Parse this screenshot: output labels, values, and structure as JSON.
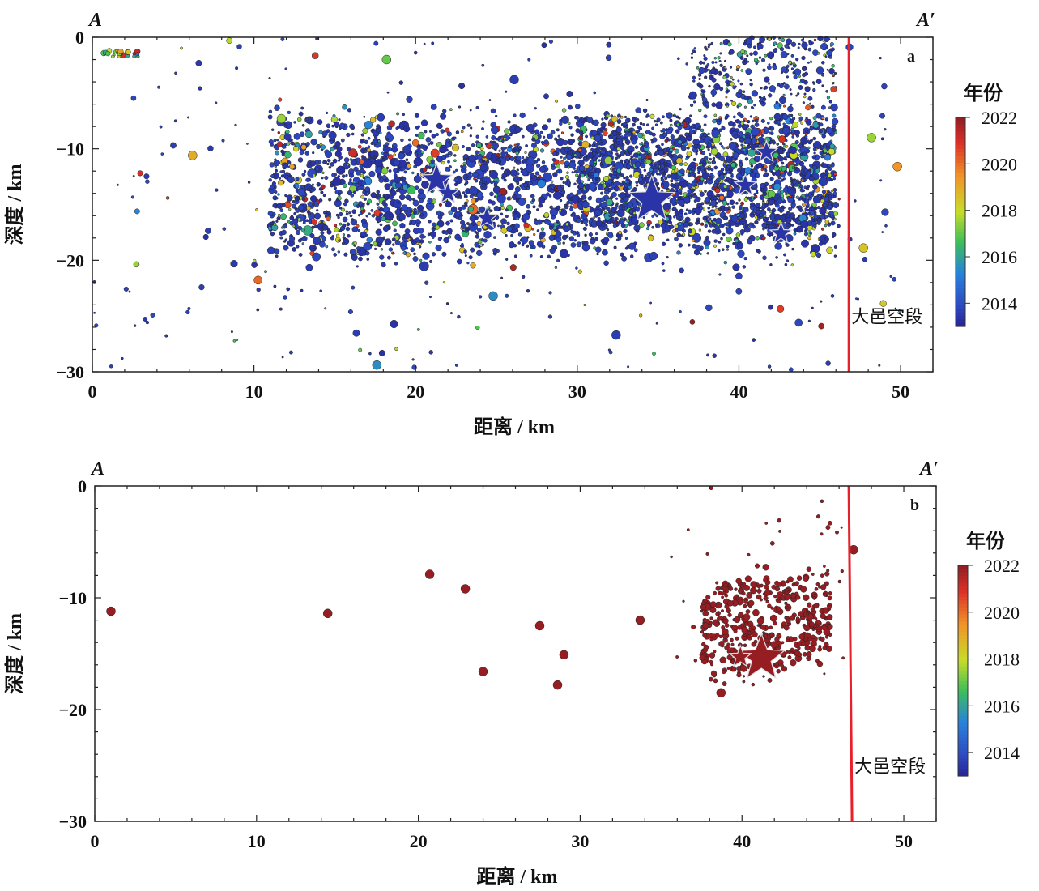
{
  "chart_data": [
    {
      "type": "scatter",
      "panel_label": "a",
      "profile_start_label": "A",
      "profile_end_label": "A′",
      "xlabel": "距离 / km",
      "ylabel": "深度 / km",
      "xlim": [
        0,
        52
      ],
      "ylim": [
        -30,
        0
      ],
      "x_ticks": [
        "0",
        "10",
        "20",
        "30",
        "40",
        "50"
      ],
      "y_ticks": [
        "0",
        "−10",
        "−20",
        "−30"
      ],
      "fault": {
        "name": "大邑空段",
        "x_top": 46.8,
        "x_bottom": 46.8,
        "color": "#e8202a"
      },
      "colorbar": {
        "title": "年份",
        "min": 2013,
        "max": 2022,
        "ticks": [
          "2022",
          "2020",
          "2018",
          "2016",
          "2014"
        ]
      },
      "cluster_summary": [
        {
          "x_range": [
            11,
            46
          ],
          "depth_range": [
            -20,
            -8
          ],
          "dominant_year": 2013.5,
          "note": "dense"
        },
        {
          "x_range": [
            37,
            46
          ],
          "depth_range": [
            -6,
            0
          ],
          "dominant_year": 2013.5,
          "note": "shallow cluster"
        }
      ],
      "mainshocks_stars": [
        {
          "x": 21.3,
          "depth": -12.8,
          "size": "medium",
          "year": 2013.3
        },
        {
          "x": 22.0,
          "depth": -14.0,
          "size": "small",
          "year": 2013.3
        },
        {
          "x": 24.4,
          "depth": -16.2,
          "size": "small",
          "year": 2013.3
        },
        {
          "x": 34.6,
          "depth": -14.6,
          "size": "large",
          "year": 2013.3
        },
        {
          "x": 40.4,
          "depth": -13.3,
          "size": "small",
          "year": 2013.3
        },
        {
          "x": 41.7,
          "depth": -10.3,
          "size": "small",
          "year": 2013.3
        },
        {
          "x": 42.6,
          "depth": -17.6,
          "size": "small",
          "year": 2013.3
        }
      ],
      "sample_events": [
        {
          "x": 26.1,
          "depth": -3.8,
          "year": 2013.5
        },
        {
          "x": 18.2,
          "depth": -2.0,
          "year": 2017.0
        },
        {
          "x": 11.7,
          "depth": -7.3,
          "year": 2017.5
        },
        {
          "x": 49.8,
          "depth": -11.6,
          "year": 2019.5
        },
        {
          "x": 24.8,
          "depth": -23.2,
          "year": 2015.5
        },
        {
          "x": 17.6,
          "depth": -29.4,
          "year": 2015.5
        },
        {
          "x": 32.4,
          "depth": -26.7,
          "year": 2013.5
        },
        {
          "x": 6.2,
          "depth": -10.6,
          "year": 2019.0
        },
        {
          "x": 47.7,
          "depth": -18.9,
          "year": 2018.5
        },
        {
          "x": 48.2,
          "depth": -9.0,
          "year": 2017.5
        }
      ]
    },
    {
      "type": "scatter",
      "panel_label": "b",
      "profile_start_label": "A",
      "profile_end_label": "A′",
      "xlabel": "距离 / km",
      "ylabel": "深度 / km",
      "xlim": [
        0,
        52
      ],
      "ylim": [
        -30,
        0
      ],
      "x_ticks": [
        "0",
        "10",
        "20",
        "30",
        "40",
        "50"
      ],
      "y_ticks": [
        "0",
        "−10",
        "−20",
        "−30"
      ],
      "fault": {
        "name": "大邑空段",
        "x_top": 46.6,
        "x_bottom": 46.8,
        "color": "#e8202a"
      },
      "colorbar": {
        "title": "年份",
        "min": 2013,
        "max": 2022,
        "ticks": [
          "2022",
          "2020",
          "2018",
          "2016",
          "2014"
        ]
      },
      "cluster_summary": [
        {
          "x_range": [
            37,
            46
          ],
          "depth_range": [
            -17,
            -7
          ],
          "dominant_year": 2022,
          "note": "dense"
        }
      ],
      "mainshocks_stars": [
        {
          "x": 41.2,
          "depth": -15.4,
          "size": "large",
          "year": 2022
        },
        {
          "x": 39.9,
          "depth": -15.3,
          "size": "small",
          "year": 2022
        }
      ],
      "sample_events": [
        {
          "x": 1.0,
          "depth": -11.2,
          "year": 2022
        },
        {
          "x": 14.4,
          "depth": -11.4,
          "year": 2022
        },
        {
          "x": 20.7,
          "depth": -7.9,
          "year": 2022
        },
        {
          "x": 22.9,
          "depth": -9.2,
          "year": 2022
        },
        {
          "x": 27.5,
          "depth": -12.5,
          "year": 2022
        },
        {
          "x": 29.0,
          "depth": -15.1,
          "year": 2022
        },
        {
          "x": 28.6,
          "depth": -17.8,
          "year": 2022
        },
        {
          "x": 24.0,
          "depth": -16.6,
          "year": 2022
        },
        {
          "x": 33.7,
          "depth": -12.0,
          "year": 2022
        },
        {
          "x": 38.7,
          "depth": -18.5,
          "year": 2022
        },
        {
          "x": 46.9,
          "depth": -5.7,
          "year": 2022
        }
      ]
    }
  ]
}
